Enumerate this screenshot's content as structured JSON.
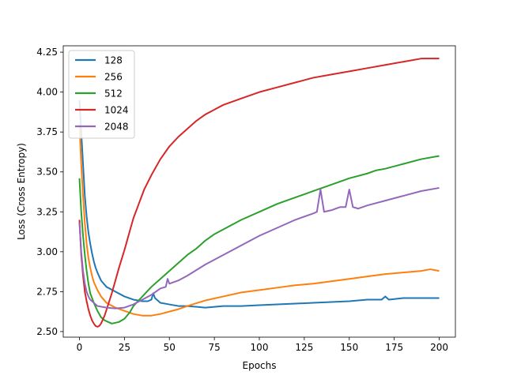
{
  "chart_data": {
    "type": "line",
    "title": "",
    "xlabel": "Epochs",
    "ylabel": "Loss (Cross Entropy)",
    "xlim": [
      -9,
      209
    ],
    "ylim": [
      2.465,
      4.29
    ],
    "xticks": [
      0,
      25,
      50,
      75,
      100,
      125,
      150,
      175,
      200
    ],
    "yticks": [
      2.5,
      2.75,
      3.0,
      3.25,
      3.5,
      3.75,
      4.0,
      4.25
    ],
    "ytick_labels": [
      "2.50",
      "2.75",
      "3.00",
      "3.25",
      "3.50",
      "3.75",
      "4.00",
      "4.25"
    ],
    "grid": false,
    "legend": "top-left",
    "series": [
      {
        "name": "128",
        "color": "#1f77b4",
        "points": [
          [
            0,
            3.95
          ],
          [
            1,
            3.75
          ],
          [
            2,
            3.55
          ],
          [
            3,
            3.35
          ],
          [
            4,
            3.22
          ],
          [
            5,
            3.12
          ],
          [
            6,
            3.05
          ],
          [
            7,
            2.99
          ],
          [
            8,
            2.94
          ],
          [
            9,
            2.9
          ],
          [
            10,
            2.87
          ],
          [
            12,
            2.82
          ],
          [
            15,
            2.78
          ],
          [
            20,
            2.75
          ],
          [
            25,
            2.72
          ],
          [
            30,
            2.7
          ],
          [
            35,
            2.69
          ],
          [
            38,
            2.69
          ],
          [
            40,
            2.7
          ],
          [
            41,
            2.74
          ],
          [
            42,
            2.71
          ],
          [
            45,
            2.68
          ],
          [
            50,
            2.67
          ],
          [
            55,
            2.66
          ],
          [
            60,
            2.66
          ],
          [
            70,
            2.65
          ],
          [
            80,
            2.66
          ],
          [
            90,
            2.66
          ],
          [
            100,
            2.665
          ],
          [
            110,
            2.67
          ],
          [
            120,
            2.675
          ],
          [
            130,
            2.68
          ],
          [
            140,
            2.685
          ],
          [
            150,
            2.69
          ],
          [
            160,
            2.7
          ],
          [
            168,
            2.7
          ],
          [
            170,
            2.72
          ],
          [
            172,
            2.7
          ],
          [
            180,
            2.71
          ],
          [
            190,
            2.71
          ],
          [
            200,
            2.71
          ]
        ]
      },
      {
        "name": "256",
        "color": "#ff7f0e",
        "points": [
          [
            0,
            3.8
          ],
          [
            1,
            3.55
          ],
          [
            2,
            3.35
          ],
          [
            3,
            3.18
          ],
          [
            4,
            3.05
          ],
          [
            5,
            2.96
          ],
          [
            6,
            2.9
          ],
          [
            7,
            2.85
          ],
          [
            8,
            2.81
          ],
          [
            10,
            2.76
          ],
          [
            12,
            2.72
          ],
          [
            15,
            2.68
          ],
          [
            20,
            2.65
          ],
          [
            25,
            2.63
          ],
          [
            30,
            2.61
          ],
          [
            35,
            2.6
          ],
          [
            40,
            2.6
          ],
          [
            45,
            2.61
          ],
          [
            50,
            2.625
          ],
          [
            55,
            2.64
          ],
          [
            60,
            2.66
          ],
          [
            70,
            2.695
          ],
          [
            80,
            2.72
          ],
          [
            90,
            2.745
          ],
          [
            100,
            2.76
          ],
          [
            110,
            2.775
          ],
          [
            120,
            2.79
          ],
          [
            130,
            2.8
          ],
          [
            140,
            2.815
          ],
          [
            150,
            2.83
          ],
          [
            160,
            2.845
          ],
          [
            170,
            2.86
          ],
          [
            180,
            2.87
          ],
          [
            190,
            2.88
          ],
          [
            195,
            2.89
          ],
          [
            200,
            2.88
          ]
        ]
      },
      {
        "name": "512",
        "color": "#2ca02c",
        "points": [
          [
            0,
            3.46
          ],
          [
            1,
            3.25
          ],
          [
            2,
            3.1
          ],
          [
            3,
            2.98
          ],
          [
            4,
            2.88
          ],
          [
            5,
            2.8
          ],
          [
            6,
            2.74
          ],
          [
            8,
            2.68
          ],
          [
            10,
            2.63
          ],
          [
            12,
            2.59
          ],
          [
            14,
            2.57
          ],
          [
            16,
            2.56
          ],
          [
            18,
            2.55
          ],
          [
            20,
            2.555
          ],
          [
            22,
            2.56
          ],
          [
            25,
            2.58
          ],
          [
            28,
            2.62
          ],
          [
            30,
            2.66
          ],
          [
            35,
            2.72
          ],
          [
            40,
            2.78
          ],
          [
            45,
            2.83
          ],
          [
            50,
            2.88
          ],
          [
            55,
            2.93
          ],
          [
            60,
            2.98
          ],
          [
            65,
            3.02
          ],
          [
            70,
            3.07
          ],
          [
            75,
            3.11
          ],
          [
            80,
            3.14
          ],
          [
            90,
            3.2
          ],
          [
            100,
            3.25
          ],
          [
            110,
            3.3
          ],
          [
            120,
            3.34
          ],
          [
            130,
            3.38
          ],
          [
            135,
            3.4
          ],
          [
            140,
            3.42
          ],
          [
            150,
            3.46
          ],
          [
            160,
            3.49
          ],
          [
            165,
            3.51
          ],
          [
            170,
            3.52
          ],
          [
            180,
            3.55
          ],
          [
            190,
            3.58
          ],
          [
            200,
            3.6
          ]
        ]
      },
      {
        "name": "1024",
        "color": "#d62728",
        "points": [
          [
            0,
            3.2
          ],
          [
            1,
            2.98
          ],
          [
            2,
            2.85
          ],
          [
            3,
            2.75
          ],
          [
            4,
            2.69
          ],
          [
            5,
            2.64
          ],
          [
            6,
            2.6
          ],
          [
            7,
            2.57
          ],
          [
            8,
            2.55
          ],
          [
            9,
            2.535
          ],
          [
            10,
            2.53
          ],
          [
            11,
            2.535
          ],
          [
            12,
            2.55
          ],
          [
            14,
            2.6
          ],
          [
            16,
            2.67
          ],
          [
            18,
            2.74
          ],
          [
            20,
            2.82
          ],
          [
            22,
            2.9
          ],
          [
            25,
            3.01
          ],
          [
            28,
            3.13
          ],
          [
            30,
            3.21
          ],
          [
            33,
            3.3
          ],
          [
            36,
            3.39
          ],
          [
            40,
            3.48
          ],
          [
            45,
            3.58
          ],
          [
            50,
            3.66
          ],
          [
            55,
            3.72
          ],
          [
            60,
            3.77
          ],
          [
            65,
            3.82
          ],
          [
            70,
            3.86
          ],
          [
            75,
            3.89
          ],
          [
            80,
            3.92
          ],
          [
            90,
            3.96
          ],
          [
            100,
            4.0
          ],
          [
            110,
            4.03
          ],
          [
            120,
            4.06
          ],
          [
            130,
            4.09
          ],
          [
            140,
            4.11
          ],
          [
            150,
            4.13
          ],
          [
            160,
            4.15
          ],
          [
            170,
            4.17
          ],
          [
            180,
            4.19
          ],
          [
            190,
            4.21
          ],
          [
            200,
            4.21
          ]
        ]
      },
      {
        "name": "2048",
        "color": "#9467bd",
        "points": [
          [
            0,
            3.18
          ],
          [
            1,
            3.0
          ],
          [
            2,
            2.88
          ],
          [
            3,
            2.8
          ],
          [
            4,
            2.75
          ],
          [
            5,
            2.72
          ],
          [
            6,
            2.7
          ],
          [
            8,
            2.68
          ],
          [
            10,
            2.66
          ],
          [
            15,
            2.65
          ],
          [
            20,
            2.645
          ],
          [
            25,
            2.65
          ],
          [
            30,
            2.67
          ],
          [
            35,
            2.7
          ],
          [
            40,
            2.73
          ],
          [
            45,
            2.77
          ],
          [
            48,
            2.78
          ],
          [
            49,
            2.83
          ],
          [
            50,
            2.8
          ],
          [
            55,
            2.82
          ],
          [
            60,
            2.85
          ],
          [
            70,
            2.92
          ],
          [
            80,
            2.98
          ],
          [
            90,
            3.04
          ],
          [
            100,
            3.1
          ],
          [
            110,
            3.15
          ],
          [
            120,
            3.2
          ],
          [
            130,
            3.24
          ],
          [
            132,
            3.25
          ],
          [
            134,
            3.39
          ],
          [
            136,
            3.25
          ],
          [
            140,
            3.26
          ],
          [
            145,
            3.28
          ],
          [
            148,
            3.28
          ],
          [
            150,
            3.39
          ],
          [
            152,
            3.28
          ],
          [
            155,
            3.27
          ],
          [
            160,
            3.29
          ],
          [
            170,
            3.32
          ],
          [
            180,
            3.35
          ],
          [
            190,
            3.38
          ],
          [
            200,
            3.4
          ]
        ]
      }
    ]
  }
}
